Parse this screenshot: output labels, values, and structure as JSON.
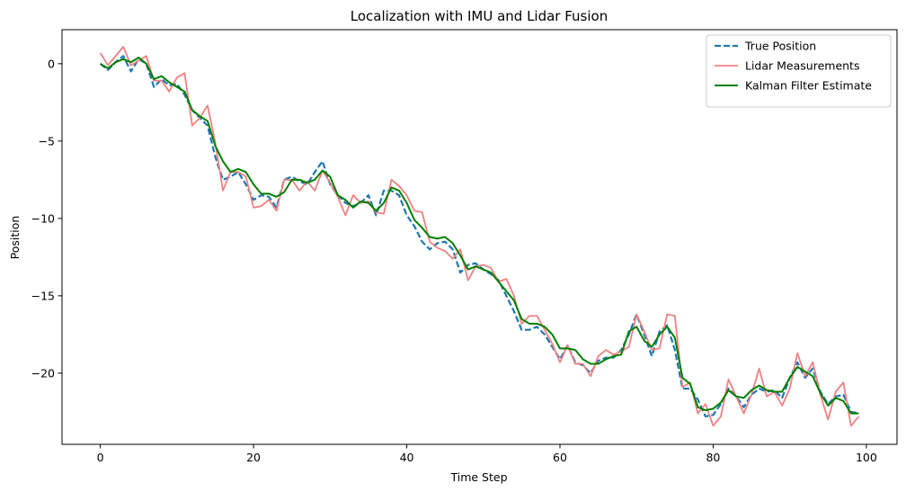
{
  "chart_data": {
    "type": "line",
    "title": "Localization with IMU and Lidar Fusion",
    "xlabel": "Time Step",
    "ylabel": "Position",
    "xlim": [
      -5,
      104
    ],
    "ylim": [
      -24.6,
      2.2
    ],
    "xticks": [
      0,
      20,
      40,
      60,
      80,
      100
    ],
    "yticks": [
      0,
      -5,
      -10,
      -15,
      -20
    ],
    "xtick_labels": [
      "0",
      "20",
      "40",
      "60",
      "80",
      "100"
    ],
    "ytick_labels": [
      "0",
      "−5",
      "−10",
      "−15",
      "−20"
    ],
    "grid": false,
    "legend_position": "upper right",
    "x_range": [
      0,
      99
    ],
    "series": [
      {
        "name": "True Position",
        "color": "#1f77b4",
        "style": "dashed",
        "width": 2.2,
        "values": [
          0,
          -0.4,
          0.1,
          0.5,
          -0.5,
          0.3,
          0,
          -1.5,
          -1,
          -1.4,
          -1.3,
          -2,
          -3,
          -3.5,
          -4,
          -6,
          -7.5,
          -7.3,
          -7,
          -7.8,
          -8.8,
          -8.5,
          -8.6,
          -9.3,
          -7.5,
          -7.3,
          -7.6,
          -7.8,
          -7,
          -6.3,
          -7.8,
          -8.5,
          -9,
          -9.2,
          -9,
          -8.5,
          -9.8,
          -8.2,
          -8.2,
          -8.5,
          -9.8,
          -10.5,
          -11.5,
          -12,
          -11.6,
          -11.5,
          -12,
          -13.5,
          -13,
          -12.9,
          -13.3,
          -13.6,
          -14,
          -15,
          -16,
          -17.2,
          -17.2,
          -17,
          -17.5,
          -18.3,
          -19.1,
          -18.2,
          -19.3,
          -19.5,
          -20,
          -19.2,
          -19,
          -19,
          -18.5,
          -17.5,
          -16.2,
          -17.5,
          -18.9,
          -17.3,
          -16.9,
          -18.5,
          -21,
          -21,
          -21.7,
          -22.8,
          -22.7,
          -22,
          -21,
          -21.5,
          -22.2,
          -21.4,
          -21,
          -21.2,
          -21.1,
          -21.6,
          -20.3,
          -19.3,
          -20.3,
          -19.7,
          -21.2,
          -22,
          -21.5,
          -21.4,
          -22.5,
          -22.6
        ]
      },
      {
        "name": "Lidar Measurements",
        "color": "#f08080",
        "style": "solid",
        "width": 1.8,
        "values": [
          0.7,
          -0.1,
          0.5,
          1.1,
          -0.1,
          0.2,
          0.5,
          -1.1,
          -1.1,
          -1.8,
          -0.9,
          -0.6,
          -4,
          -3.5,
          -2.7,
          -5.1,
          -8.2,
          -7,
          -7,
          -7.3,
          -9.3,
          -9.2,
          -8.8,
          -9.5,
          -7.5,
          -7.5,
          -8.2,
          -7.6,
          -8.2,
          -6.9,
          -7.7,
          -8.6,
          -9.8,
          -8.5,
          -9,
          -8.9,
          -9.6,
          -9.7,
          -7.5,
          -7.9,
          -8.5,
          -9.5,
          -9.6,
          -11.5,
          -11.9,
          -12.1,
          -12.6,
          -12,
          -14,
          -13.1,
          -13,
          -13.2,
          -14.1,
          -13.9,
          -15,
          -16.8,
          -16.3,
          -16.3,
          -17.2,
          -18.1,
          -19.3,
          -18.2,
          -19.4,
          -19.4,
          -20.2,
          -18.9,
          -18.5,
          -18.8,
          -18.6,
          -18.3,
          -16.2,
          -17.3,
          -18.5,
          -18.4,
          -16.2,
          -16.3,
          -20.9,
          -20.6,
          -22.6,
          -22,
          -23.4,
          -22.8,
          -20.4,
          -21.5,
          -22.6,
          -21.4,
          -19.7,
          -21.5,
          -21.2,
          -22.1,
          -21,
          -18.7,
          -20.2,
          -19.3,
          -21.4,
          -23,
          -21.2,
          -20.6,
          -23.4,
          -22.8
        ]
      },
      {
        "name": "Kalman Filter Estimate",
        "color": "#008000",
        "style": "solid",
        "width": 2,
        "values": [
          0,
          -0.3,
          0.1,
          0.3,
          0.1,
          0.4,
          0,
          -1,
          -0.8,
          -1.2,
          -1.5,
          -1.8,
          -3,
          -3.4,
          -3.7,
          -5.3,
          -6.3,
          -7,
          -6.8,
          -7,
          -7.8,
          -8.4,
          -8.4,
          -8.6,
          -8.3,
          -7.5,
          -7.5,
          -7.7,
          -7.5,
          -6.9,
          -7.3,
          -8.5,
          -8.8,
          -9.3,
          -8.9,
          -9,
          -9.5,
          -9,
          -8,
          -8.2,
          -9,
          -10.1,
          -10.6,
          -11.2,
          -11.3,
          -11.2,
          -11.6,
          -12.4,
          -13.3,
          -13.1,
          -13.3,
          -13.5,
          -14.1,
          -14.7,
          -15.3,
          -16.5,
          -16.8,
          -16.8,
          -17,
          -17.5,
          -18.4,
          -18.4,
          -18.5,
          -19.1,
          -19.4,
          -19.4,
          -19.1,
          -18.9,
          -18.8,
          -17.3,
          -17,
          -17.9,
          -18.3,
          -17.5,
          -17,
          -17.7,
          -20.3,
          -20.7,
          -22.2,
          -22.4,
          -22.3,
          -21.9,
          -21.1,
          -21.5,
          -21.6,
          -21.1,
          -20.8,
          -21.1,
          -21.2,
          -21.2,
          -20.3,
          -19.6,
          -19.9,
          -20.2,
          -21.3,
          -22.1,
          -21.6,
          -21.8,
          -22.6,
          -22.6
        ]
      }
    ]
  }
}
